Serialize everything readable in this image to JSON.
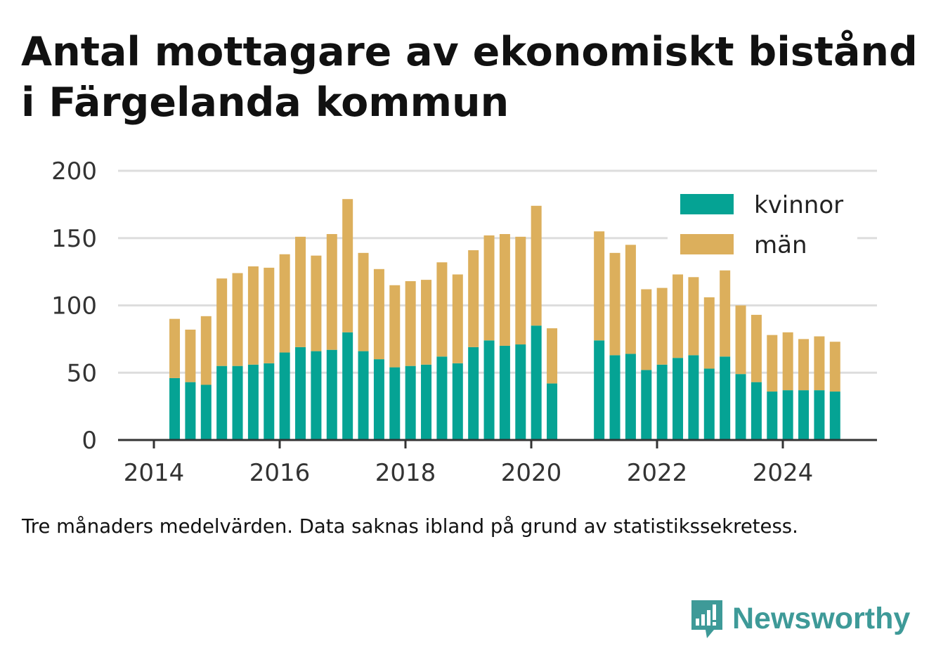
{
  "title": "Antal mottagare av ekonomiskt bistånd i Färgelanda kommun",
  "footnote": "Tre månaders medelvärden. Data saknas ibland på grund av statistikssekretess.",
  "brand": {
    "name": "Newsworthy",
    "icon": "bar-chart-speech-bubble-icon",
    "color": "#3e9a98"
  },
  "colors": {
    "kvinnor": "#05a394",
    "man": "#dcaf5c",
    "grid": "#dddddd",
    "axis": "#333333"
  },
  "chart_data": {
    "type": "bar",
    "stacked": true,
    "ylim": [
      0,
      200
    ],
    "yticks": [
      0,
      50,
      100,
      150,
      200
    ],
    "xlim": [
      2014,
      2025.2
    ],
    "xticks": [
      2014,
      2016,
      2018,
      2020,
      2022,
      2024
    ],
    "x_labels": [
      "2014",
      "2016",
      "2018",
      "2020",
      "2022",
      "2024"
    ],
    "grid": true,
    "legend_position": "top-right",
    "x": [
      2014.33,
      2014.58,
      2014.83,
      2015.08,
      2015.33,
      2015.58,
      2015.83,
      2016.08,
      2016.33,
      2016.58,
      2016.83,
      2017.08,
      2017.33,
      2017.58,
      2017.83,
      2018.08,
      2018.33,
      2018.58,
      2018.83,
      2019.08,
      2019.33,
      2019.58,
      2019.83,
      2020.08,
      2020.33,
      2021.08,
      2021.33,
      2021.58,
      2021.83,
      2022.08,
      2022.33,
      2022.58,
      2022.83,
      2023.08,
      2023.33,
      2023.58,
      2023.83,
      2024.08,
      2024.33,
      2024.58,
      2024.83
    ],
    "series": [
      {
        "name": "kvinnor",
        "color": "#05a394",
        "values": [
          46,
          43,
          41,
          55,
          55,
          56,
          57,
          65,
          69,
          66,
          67,
          80,
          66,
          60,
          54,
          55,
          56,
          62,
          57,
          69,
          74,
          70,
          71,
          85,
          42,
          74,
          63,
          64,
          52,
          56,
          61,
          63,
          53,
          62,
          49,
          43,
          36,
          37,
          37,
          37,
          36
        ]
      },
      {
        "name": "män",
        "color": "#dcaf5c",
        "values": [
          44,
          39,
          51,
          65,
          69,
          73,
          71,
          73,
          82,
          71,
          86,
          99,
          73,
          67,
          61,
          63,
          63,
          70,
          66,
          72,
          78,
          83,
          80,
          89,
          41,
          81,
          76,
          81,
          60,
          57,
          62,
          58,
          53,
          64,
          51,
          50,
          42,
          43,
          38,
          40,
          37
        ]
      }
    ]
  }
}
